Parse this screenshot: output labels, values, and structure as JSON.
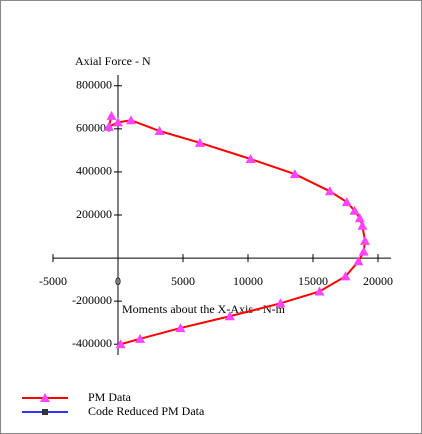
{
  "chart_data": {
    "type": "line",
    "y_axis_label": "Axial Force - N",
    "x_axis_label": "Moments about the X-Axis - N-m",
    "xlim": [
      -5000,
      21000
    ],
    "ylim": [
      -450000,
      850000
    ],
    "xticks": [
      -5000,
      0,
      5000,
      10000,
      15000,
      20000
    ],
    "yticks": [
      -400000,
      -200000,
      200000,
      400000,
      600000,
      800000
    ],
    "series": [
      {
        "name": "PM Data",
        "color": "#ff0000",
        "marker_color": "#ff44ff",
        "marker": "triangle",
        "x": [
          -500,
          -700,
          0,
          1000,
          3200,
          6300,
          10200,
          13600,
          16300,
          17600,
          18200,
          18600,
          18800,
          19000,
          18900,
          18500,
          17500,
          15500,
          12500,
          8600,
          4800,
          1700,
          200
        ],
        "values": [
          660000,
          610000,
          630000,
          640000,
          590000,
          535000,
          460000,
          390000,
          310000,
          260000,
          220000,
          185000,
          150000,
          80000,
          30000,
          -15000,
          -85000,
          -155000,
          -210000,
          -270000,
          -325000,
          -375000,
          -400000
        ]
      },
      {
        "name": "Code Reduced PM Data",
        "color": "#3333ff",
        "marker_color": "#333333",
        "marker": "square",
        "x": [],
        "values": []
      }
    ]
  }
}
